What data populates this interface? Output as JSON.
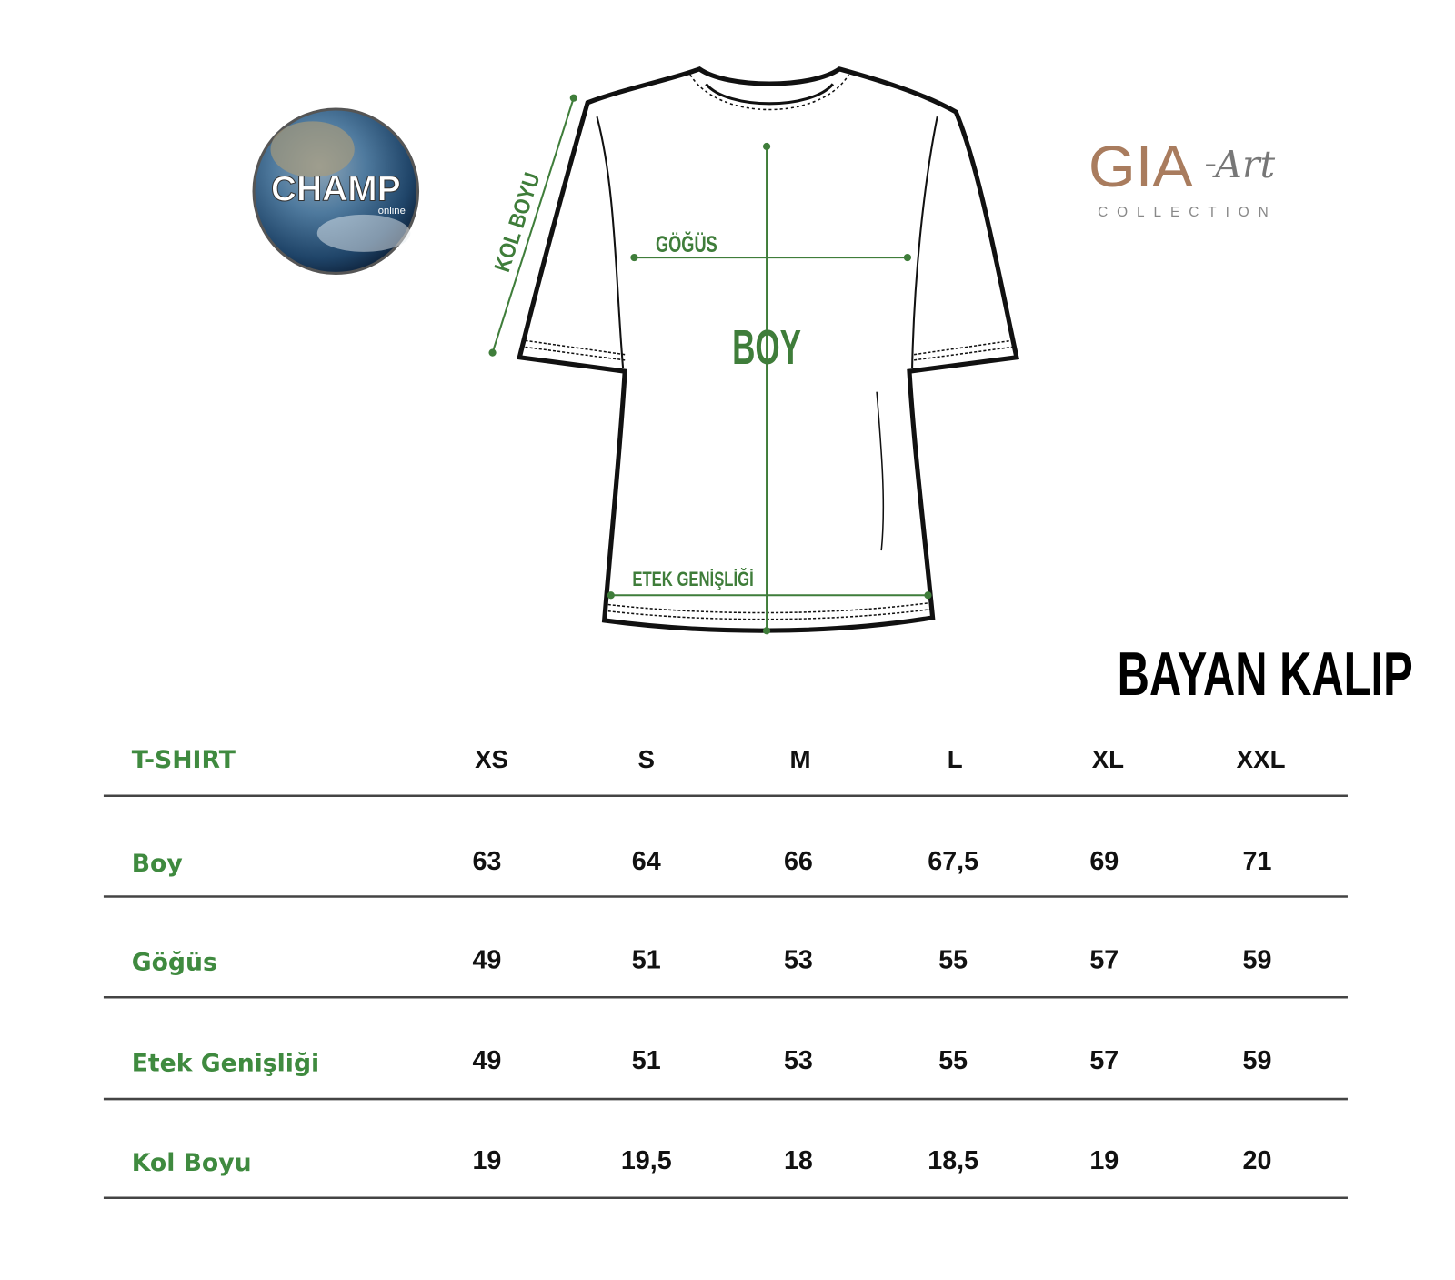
{
  "logos": {
    "left": {
      "text": "CHAMP",
      "subtext": "online"
    },
    "right": {
      "text": "GIA",
      "script": "Art",
      "subtext": "COLLECTION",
      "color": "#a97c5e"
    }
  },
  "diagram": {
    "labels": {
      "sleeve": "KOL BOYU",
      "chest": "GÖĞÜS",
      "length": "BOY",
      "hem": "ETEK GENİŞLİĞİ"
    },
    "line_color": "#3f7d3a"
  },
  "title": "BAYAN KALIP",
  "table": {
    "corner": "T-SHIRT",
    "sizes": [
      "XS",
      "S",
      "M",
      "L",
      "XL",
      "XXL"
    ],
    "rows": [
      {
        "label": "Boy",
        "values": [
          "63",
          "64",
          "66",
          "67,5",
          "69",
          "71"
        ]
      },
      {
        "label": "Göğüs",
        "values": [
          "49",
          "51",
          "53",
          "55",
          "57",
          "59"
        ]
      },
      {
        "label": "Etek Genişliği",
        "values": [
          "49",
          "51",
          "53",
          "55",
          "57",
          "59"
        ]
      },
      {
        "label": "Kol Boyu",
        "values": [
          "19",
          "19,5",
          "18",
          "18,5",
          "19",
          "20"
        ]
      }
    ],
    "label_color": "#3f8a3f"
  }
}
